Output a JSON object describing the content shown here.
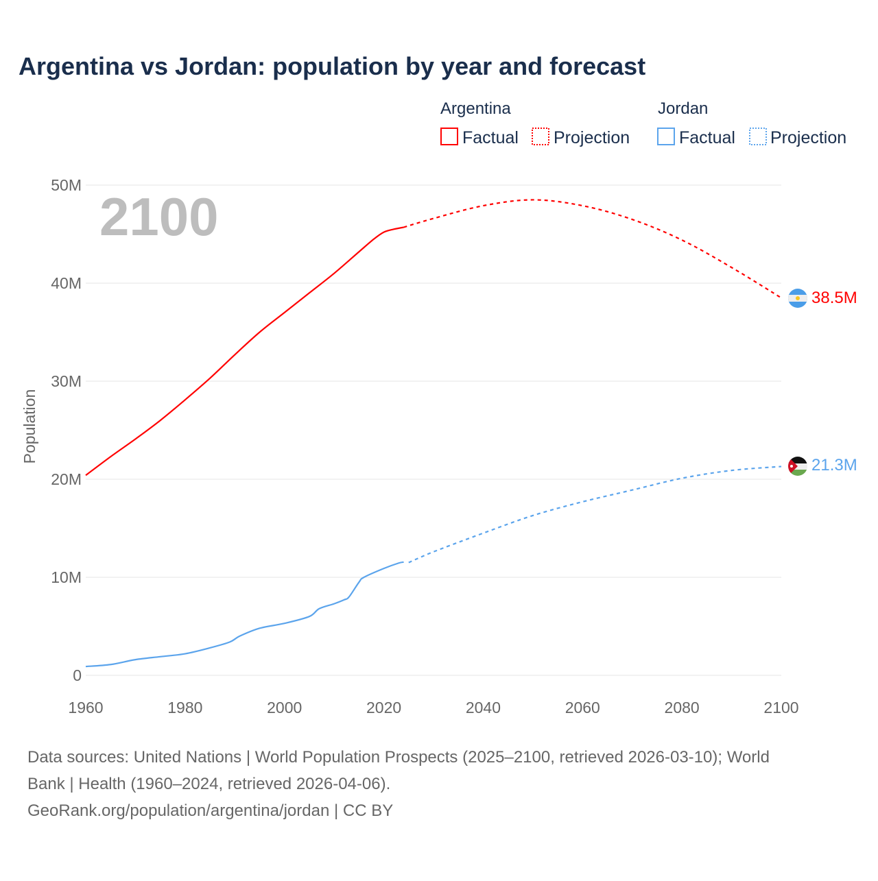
{
  "chart_data": {
    "type": "line",
    "title": "Argentina vs Jordan: population by year and forecast",
    "xlabel": "",
    "ylabel": "Population",
    "xlim": [
      1960,
      2100
    ],
    "ylim": [
      0,
      50000000
    ],
    "x_ticks": [
      "1960",
      "1980",
      "2000",
      "2020",
      "2040",
      "2060",
      "2080",
      "2100"
    ],
    "y_ticks": [
      {
        "v": 0,
        "label": "0"
      },
      {
        "v": 10000000,
        "label": "10M"
      },
      {
        "v": 20000000,
        "label": "20M"
      },
      {
        "v": 30000000,
        "label": "30M"
      },
      {
        "v": 40000000,
        "label": "40M"
      },
      {
        "v": 50000000,
        "label": "50M"
      }
    ],
    "year_label": "2100",
    "legend": {
      "placement": "top-right",
      "groups": [
        {
          "name": "Argentina",
          "factual": "Factual",
          "projection": "Projection",
          "color": "#ff0000"
        },
        {
          "name": "Jordan",
          "factual": "Factual",
          "projection": "Projection",
          "color": "#5ba4ec"
        }
      ]
    },
    "series": [
      {
        "name": "Argentina",
        "color": "#ff0000",
        "end_label": "38.5M",
        "flag": "argentina-flag",
        "factual": [
          [
            1960,
            20.4
          ],
          [
            1965,
            22.3
          ],
          [
            1970,
            24.1
          ],
          [
            1975,
            26.0
          ],
          [
            1980,
            28.1
          ],
          [
            1985,
            30.3
          ],
          [
            1990,
            32.7
          ],
          [
            1995,
            35.0
          ],
          [
            2000,
            37.0
          ],
          [
            2005,
            39.0
          ],
          [
            2010,
            41.0
          ],
          [
            2015,
            43.2
          ],
          [
            2018,
            44.5
          ],
          [
            2020,
            45.2
          ],
          [
            2022,
            45.5
          ],
          [
            2024,
            45.7
          ]
        ],
        "projection": [
          [
            2024,
            45.7
          ],
          [
            2030,
            46.6
          ],
          [
            2040,
            47.9
          ],
          [
            2050,
            48.5
          ],
          [
            2060,
            47.9
          ],
          [
            2070,
            46.5
          ],
          [
            2080,
            44.4
          ],
          [
            2090,
            41.6
          ],
          [
            2100,
            38.5
          ]
        ]
      },
      {
        "name": "Jordan",
        "color": "#5ba4ec",
        "end_label": "21.3M",
        "flag": "jordan-flag",
        "factual": [
          [
            1960,
            0.9
          ],
          [
            1965,
            1.1
          ],
          [
            1970,
            1.6
          ],
          [
            1975,
            1.9
          ],
          [
            1980,
            2.2
          ],
          [
            1985,
            2.8
          ],
          [
            1989,
            3.4
          ],
          [
            1991,
            4.0
          ],
          [
            1995,
            4.8
          ],
          [
            2000,
            5.3
          ],
          [
            2005,
            6.0
          ],
          [
            2007,
            6.8
          ],
          [
            2010,
            7.3
          ],
          [
            2012,
            7.7
          ],
          [
            2013,
            8.0
          ],
          [
            2015,
            9.5
          ],
          [
            2016,
            10.0
          ],
          [
            2020,
            10.9
          ],
          [
            2023,
            11.45
          ],
          [
            2024,
            11.55
          ]
        ],
        "projection": [
          [
            2025,
            11.5
          ],
          [
            2030,
            12.6
          ],
          [
            2040,
            14.5
          ],
          [
            2050,
            16.3
          ],
          [
            2060,
            17.7
          ],
          [
            2070,
            18.9
          ],
          [
            2080,
            20.1
          ],
          [
            2090,
            20.9
          ],
          [
            2100,
            21.3
          ]
        ]
      }
    ]
  },
  "sources": {
    "line1": "Data sources: United Nations | World Population Prospects (2025–2100, retrieved 2026-03-10); World",
    "line2": "Bank | Health (1960–2024, retrieved 2026-04-06).",
    "line3": "GeoRank.org/population/argentina/jordan | CC BY"
  }
}
